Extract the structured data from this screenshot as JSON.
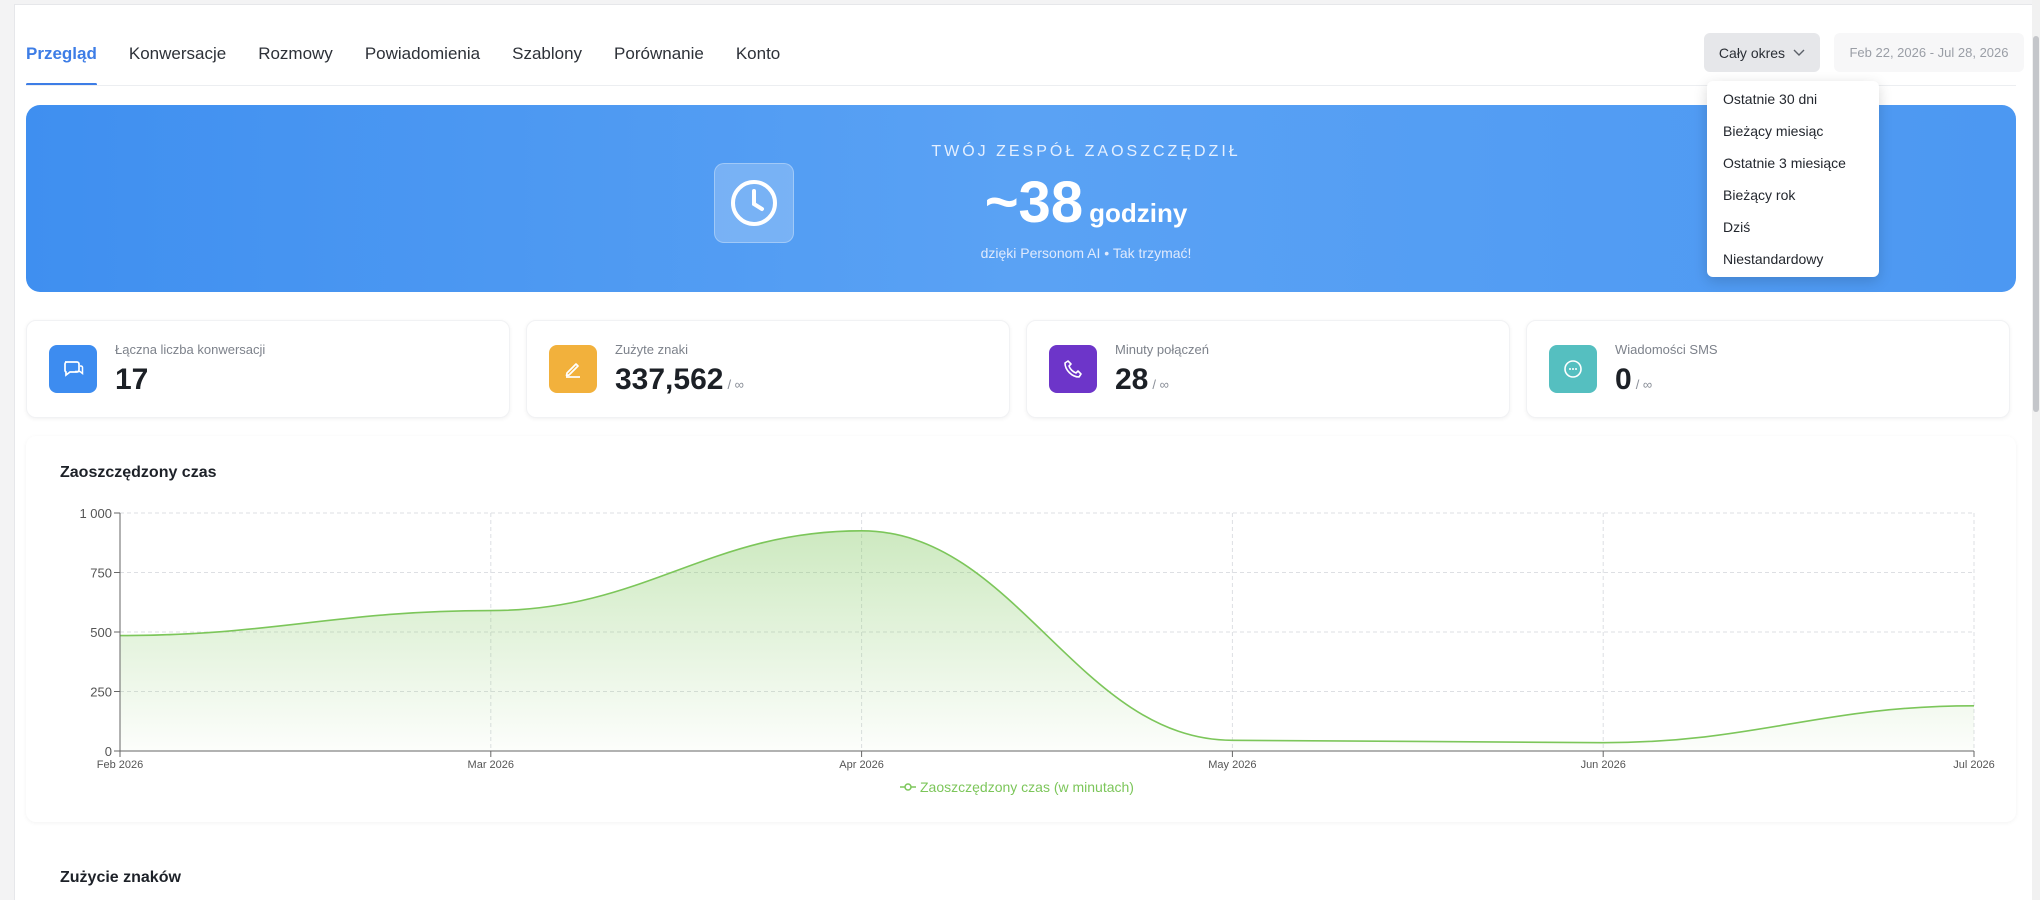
{
  "tabs": [
    {
      "label": "Przegląd",
      "active": true
    },
    {
      "label": "Konwersacje"
    },
    {
      "label": "Rozmowy"
    },
    {
      "label": "Powiadomienia"
    },
    {
      "label": "Szablony"
    },
    {
      "label": "Porównanie"
    },
    {
      "label": "Konto"
    }
  ],
  "period": {
    "label": "Cały okres",
    "date_range": "Feb 22, 2026 - Jul 28, 2026"
  },
  "dropdown": {
    "options": [
      "Ostatnie 30 dni",
      "Bieżący miesiąc",
      "Ostatnie 3 miesiące",
      "Bieżący rok",
      "Dziś",
      "Niestandardowy"
    ]
  },
  "hero": {
    "label": "TWÓJ ZESPÓŁ ZAOSZCZĘDZIŁ",
    "value": "~38",
    "unit": "godziny",
    "subtitle": "dzięki Personom AI • Tak trzymać!"
  },
  "stats": [
    {
      "label": "Łączna liczba konwersacji",
      "value": "17",
      "limit": "",
      "color": "#3d8cf0",
      "icon": "chat-icon"
    },
    {
      "label": "Zużyte znaki",
      "value": "337,562",
      "limit": "/ ∞",
      "color": "#f2b13c",
      "icon": "pencil-icon"
    },
    {
      "label": "Minuty połączeń",
      "value": "28",
      "limit": "/ ∞",
      "color": "#6d35c9",
      "icon": "phone-icon"
    },
    {
      "label": "Wiadomości SMS",
      "value": "0",
      "limit": "/ ∞",
      "color": "#55bfc0",
      "icon": "message-icon"
    }
  ],
  "chart_section": {
    "title": "Zaoszczędzony czas"
  },
  "next_section": {
    "title": "Zużycie znaków"
  },
  "colors": {
    "accent": "#3d7de6",
    "chart_line": "#7cc65a"
  },
  "chart_data": {
    "type": "area",
    "x": [
      "Feb 2026",
      "Mar 2026",
      "Apr 2026",
      "May 2026",
      "Jun 2026",
      "Jul 2026"
    ],
    "series": [
      {
        "name": "Zaoszczędzony czas (w minutach)",
        "values": [
          485,
          590,
          925,
          45,
          35,
          190
        ]
      }
    ],
    "y_ticks": [
      "0",
      "250",
      "500",
      "750",
      "1 000"
    ],
    "ylim": [
      0,
      1000
    ],
    "grid": true,
    "legend": "bottom-center"
  }
}
